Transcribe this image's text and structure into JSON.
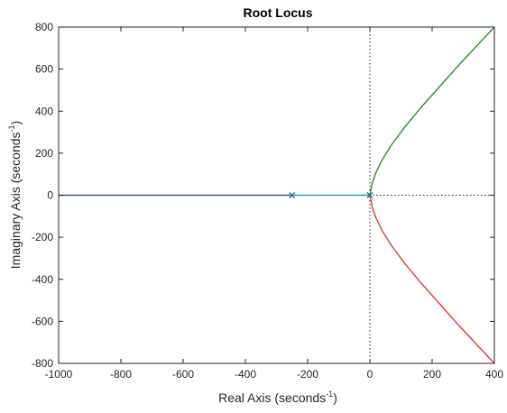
{
  "chart_data": {
    "type": "line",
    "title": "Root Locus",
    "xlabel": "Real Axis (seconds",
    "ylabel": "Imaginary Axis (seconds",
    "label_superscript": "-1",
    "label_suffix": ")",
    "xlim": [
      -1000,
      400
    ],
    "ylim": [
      -800,
      800
    ],
    "xticks": [
      -1000,
      -800,
      -600,
      -400,
      -200,
      0,
      200,
      400
    ],
    "yticks": [
      -800,
      -600,
      -400,
      -200,
      0,
      200,
      400,
      600,
      800
    ],
    "xtick_labels": [
      "-1000",
      "-800",
      "-600",
      "-400",
      "-200",
      "0",
      "200",
      "400"
    ],
    "ytick_labels": [
      "-800",
      "-600",
      "-400",
      "-200",
      "0",
      "200",
      "400",
      "600",
      "800"
    ],
    "grid": false,
    "reference_lines": [
      {
        "orientation": "horizontal",
        "value": 0
      },
      {
        "orientation": "vertical",
        "value": 0
      }
    ],
    "poles": [
      {
        "x": -250,
        "y": 0
      },
      {
        "x": 0,
        "y": 0
      }
    ],
    "series": [
      {
        "color": "#3f51b5",
        "x": [
          -250,
          -400,
          -600,
          -800,
          -1000
        ],
        "y": [
          0,
          0,
          0,
          0,
          0
        ]
      },
      {
        "color": "#2e8b2e",
        "x": [
          0,
          8,
          20,
          40,
          70,
          110,
          160,
          220,
          280,
          340,
          400
        ],
        "y": [
          0,
          60,
          110,
          170,
          240,
          320,
          410,
          510,
          610,
          705,
          800
        ]
      },
      {
        "color": "#e53935",
        "x": [
          0,
          8,
          20,
          40,
          70,
          110,
          160,
          220,
          280,
          340,
          400
        ],
        "y": [
          0,
          -60,
          -110,
          -170,
          -240,
          -320,
          -410,
          -510,
          -610,
          -705,
          -800
        ]
      },
      {
        "color": "#26a69a",
        "x": [
          -250,
          0
        ],
        "y": [
          0,
          0
        ]
      }
    ]
  }
}
